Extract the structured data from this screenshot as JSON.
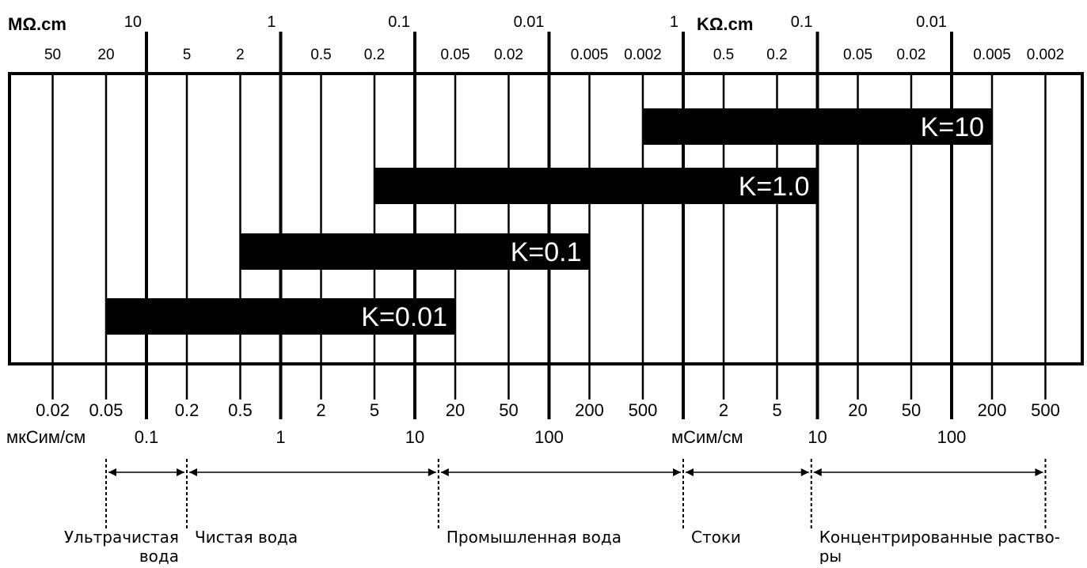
{
  "scale": {
    "ticks": [
      {
        "pos": 0.02,
        "major": false
      },
      {
        "pos": 0.05,
        "major": false
      },
      {
        "pos": 0.1,
        "major": true
      },
      {
        "pos": 0.2,
        "major": false
      },
      {
        "pos": 0.5,
        "major": false
      },
      {
        "pos": 1,
        "major": true
      },
      {
        "pos": 2,
        "major": false
      },
      {
        "pos": 5,
        "major": false
      },
      {
        "pos": 10,
        "major": true
      },
      {
        "pos": 20,
        "major": false
      },
      {
        "pos": 50,
        "major": false
      },
      {
        "pos": 100,
        "major": true
      },
      {
        "pos": 200,
        "major": false
      },
      {
        "pos": 500,
        "major": false
      },
      {
        "pos": 1000,
        "major": true
      },
      {
        "pos": 2000,
        "major": false
      },
      {
        "pos": 5000,
        "major": false
      },
      {
        "pos": 10000,
        "major": true
      },
      {
        "pos": 20000,
        "major": false
      },
      {
        "pos": 50000,
        "major": false
      },
      {
        "pos": 100000,
        "major": true
      },
      {
        "pos": 200000,
        "major": false
      },
      {
        "pos": 500000,
        "major": false
      }
    ]
  },
  "top_axis": {
    "resistivity_unit_1": "MΩ.cm",
    "resistivity_unit_2": "KΩ.cm",
    "major_labels": [
      {
        "pos": 0.1,
        "text": "10"
      },
      {
        "pos": 1,
        "text": "1"
      },
      {
        "pos": 10,
        "text": "0.1"
      },
      {
        "pos": 100,
        "text": "0.01"
      },
      {
        "pos": 1000,
        "text": "1"
      },
      {
        "pos": 10000,
        "text": "0.1"
      },
      {
        "pos": 100000,
        "text": "0.01"
      }
    ],
    "minor_labels": [
      {
        "pos": 0.02,
        "text": "50"
      },
      {
        "pos": 0.05,
        "text": "20"
      },
      {
        "pos": 0.2,
        "text": "5"
      },
      {
        "pos": 0.5,
        "text": "2"
      },
      {
        "pos": 2,
        "text": "0.5"
      },
      {
        "pos": 5,
        "text": "0.2"
      },
      {
        "pos": 20,
        "text": "0.05"
      },
      {
        "pos": 50,
        "text": "0.02"
      },
      {
        "pos": 200,
        "text": "0.005"
      },
      {
        "pos": 500,
        "text": "0.002"
      },
      {
        "pos": 2000,
        "text": "0.5"
      },
      {
        "pos": 5000,
        "text": "0.2"
      },
      {
        "pos": 20000,
        "text": "0.05"
      },
      {
        "pos": 50000,
        "text": "0.02"
      },
      {
        "pos": 200000,
        "text": "0.005"
      },
      {
        "pos": 500000,
        "text": "0.002"
      }
    ]
  },
  "bottom_axis": {
    "conductivity_unit_1": "мкСим/см",
    "conductivity_unit_2": "мСим/см",
    "minor_labels": [
      {
        "pos": 0.02,
        "text": "0.02"
      },
      {
        "pos": 0.05,
        "text": "0.05"
      },
      {
        "pos": 0.2,
        "text": "0.2"
      },
      {
        "pos": 0.5,
        "text": "0.5"
      },
      {
        "pos": 2,
        "text": "2"
      },
      {
        "pos": 5,
        "text": "5"
      },
      {
        "pos": 20,
        "text": "20"
      },
      {
        "pos": 50,
        "text": "50"
      },
      {
        "pos": 200,
        "text": "200"
      },
      {
        "pos": 500,
        "text": "500"
      },
      {
        "pos": 2000,
        "text": "2"
      },
      {
        "pos": 5000,
        "text": "5"
      },
      {
        "pos": 20000,
        "text": "20"
      },
      {
        "pos": 50000,
        "text": "50"
      },
      {
        "pos": 200000,
        "text": "200"
      },
      {
        "pos": 500000,
        "text": "500"
      }
    ],
    "major_labels": [
      {
        "pos": 0.1,
        "text": "0.1"
      },
      {
        "pos": 1,
        "text": "1"
      },
      {
        "pos": 10,
        "text": "10"
      },
      {
        "pos": 100,
        "text": "100"
      },
      {
        "pos": 10000,
        "text": "10"
      },
      {
        "pos": 100000,
        "text": "100"
      }
    ]
  },
  "cell_constants": [
    {
      "label": "K=10",
      "from": 500,
      "to": 200000
    },
    {
      "label": "K=1.0",
      "from": 5,
      "to": 10000
    },
    {
      "label": "K=0.1",
      "from": 0.5,
      "to": 200
    },
    {
      "label": "K=0.01",
      "from": 0.05,
      "to": 20
    }
  ],
  "water_ranges": {
    "boundaries": [
      0.05,
      0.2,
      15,
      1000,
      9000,
      500000
    ],
    "labels": [
      {
        "pos": 0.05,
        "lines": [
          "Ультрачистая",
          "вода"
        ]
      },
      {
        "pos": 0.2,
        "lines": [
          "Чистая вода"
        ]
      },
      {
        "pos": 15,
        "lines": [
          "Промышленная вода"
        ]
      },
      {
        "pos": 1000,
        "lines": [
          "Стоки"
        ]
      },
      {
        "pos": 9000,
        "lines": [
          "Концентрированные раство-",
          "ры"
        ]
      }
    ]
  },
  "colors": {
    "ink": "#000000",
    "bar_text": "#ffffff",
    "background": "#ffffff"
  }
}
